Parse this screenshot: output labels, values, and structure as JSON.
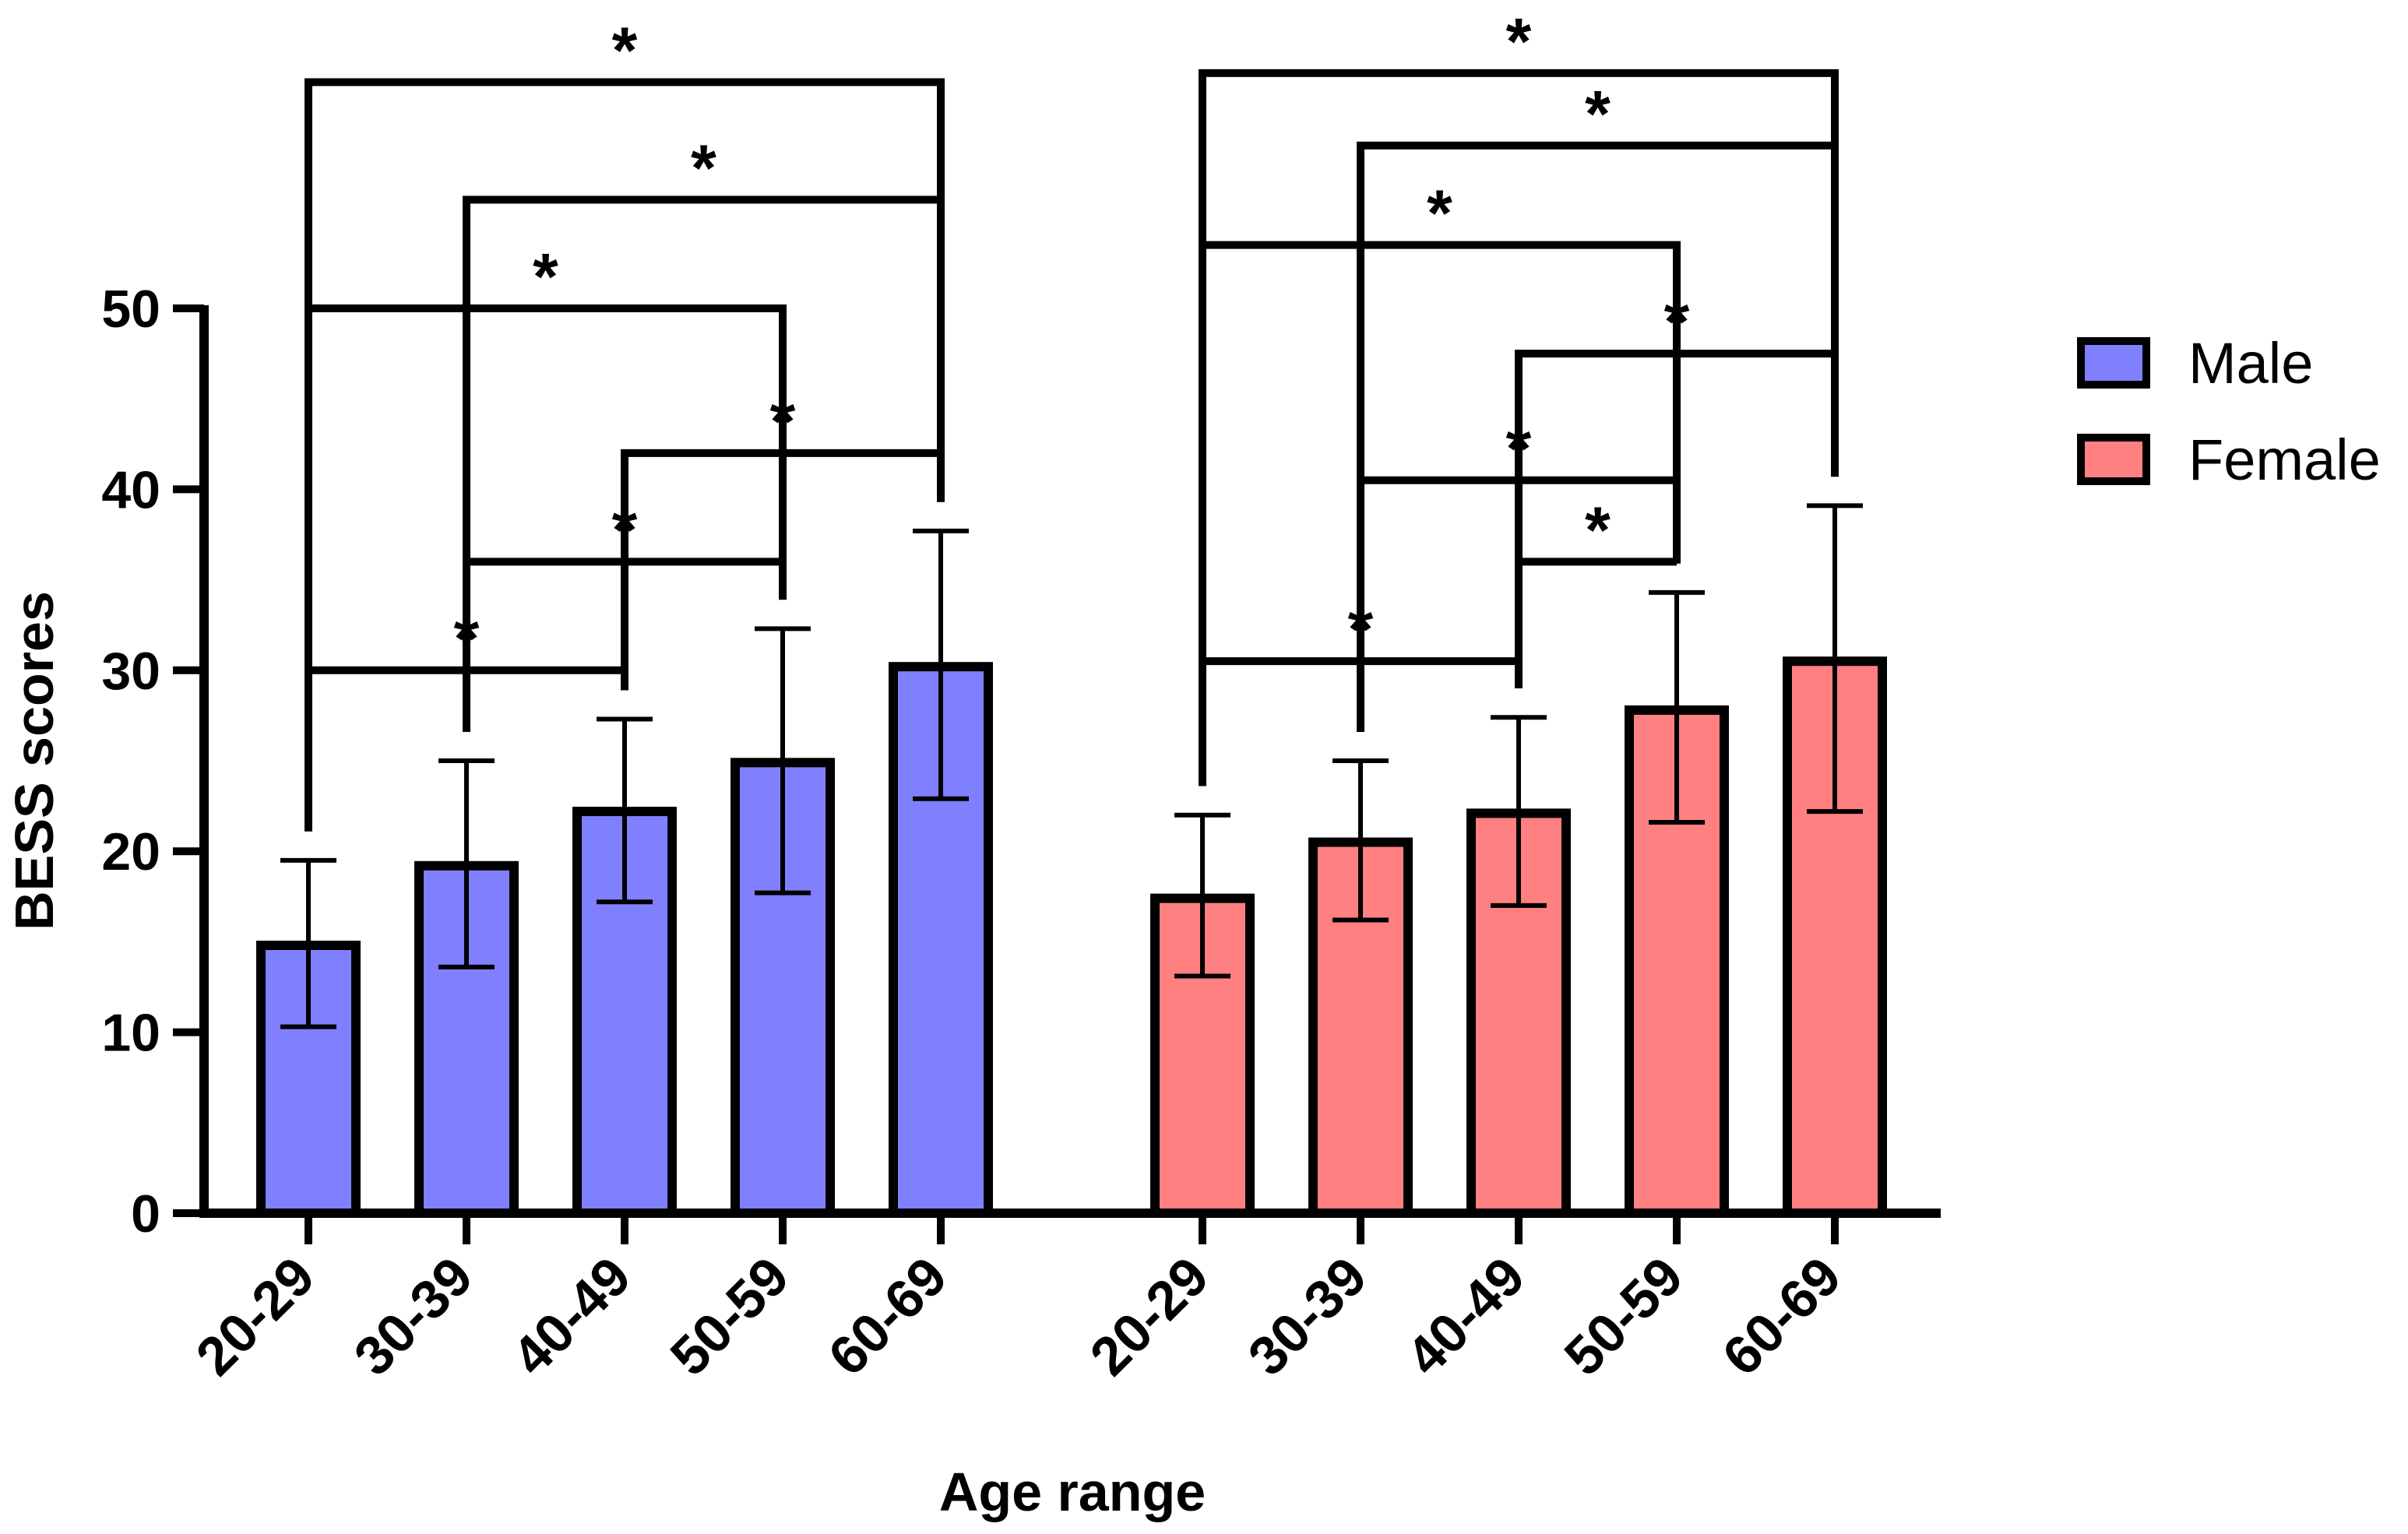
{
  "chart_data": {
    "type": "bar",
    "title": "",
    "xlabel": "Age range",
    "ylabel": "BESS scores",
    "ylim": [
      0,
      50
    ],
    "yticks": [
      0,
      10,
      20,
      30,
      40,
      50
    ],
    "categories": [
      "20-29",
      "30-39",
      "40-49",
      "50-59",
      "60-69"
    ],
    "series": [
      {
        "name": "Male",
        "color": "#8080ff",
        "values": [
          14.8,
          19.2,
          22.2,
          24.9,
          30.2
        ],
        "err_low": [
          10.3,
          13.6,
          17.2,
          17.7,
          22.9
        ],
        "err_high": [
          19.5,
          25.0,
          27.3,
          32.3,
          37.7
        ]
      },
      {
        "name": "Female",
        "color": "#ff8080",
        "values": [
          17.4,
          20.5,
          22.1,
          27.8,
          30.5
        ],
        "err_low": [
          13.1,
          16.2,
          17.0,
          21.6,
          22.2
        ],
        "err_high": [
          22.0,
          25.0,
          27.4,
          34.3,
          39.1
        ]
      }
    ],
    "significance": [
      {
        "series": "Male",
        "from": "20-29",
        "to": "40-49",
        "label": "*",
        "level": 30.0
      },
      {
        "series": "Male",
        "from": "30-39",
        "to": "50-59",
        "label": "*",
        "level": 36.0
      },
      {
        "series": "Male",
        "from": "40-49",
        "to": "60-69",
        "label": "*",
        "level": 42.0
      },
      {
        "series": "Male",
        "from": "20-29",
        "to": "50-59",
        "label": "*",
        "level": 50.0
      },
      {
        "series": "Male",
        "from": "30-39",
        "to": "60-69",
        "label": "*",
        "level": 56.0
      },
      {
        "series": "Male",
        "from": "20-29",
        "to": "60-69",
        "label": "*",
        "level": 62.5
      },
      {
        "series": "Female",
        "from": "20-29",
        "to": "40-49",
        "label": "*",
        "level": 30.5
      },
      {
        "series": "Female",
        "from": "40-49",
        "to": "50-59",
        "label": "*",
        "level": 36.0
      },
      {
        "series": "Female",
        "from": "30-39",
        "to": "50-59",
        "label": "*",
        "level": 40.5
      },
      {
        "series": "Female",
        "from": "40-49",
        "to": "60-69",
        "label": "*",
        "level": 47.5
      },
      {
        "series": "Female",
        "from": "20-29",
        "to": "50-59",
        "label": "*",
        "level": 53.5
      },
      {
        "series": "Female",
        "from": "30-39",
        "to": "60-69",
        "label": "*",
        "level": 59.0
      },
      {
        "series": "Female",
        "from": "20-29",
        "to": "60-69",
        "label": "*",
        "level": 63.0
      }
    ],
    "legend": {
      "position": "right",
      "items": [
        "Male",
        "Female"
      ]
    }
  }
}
